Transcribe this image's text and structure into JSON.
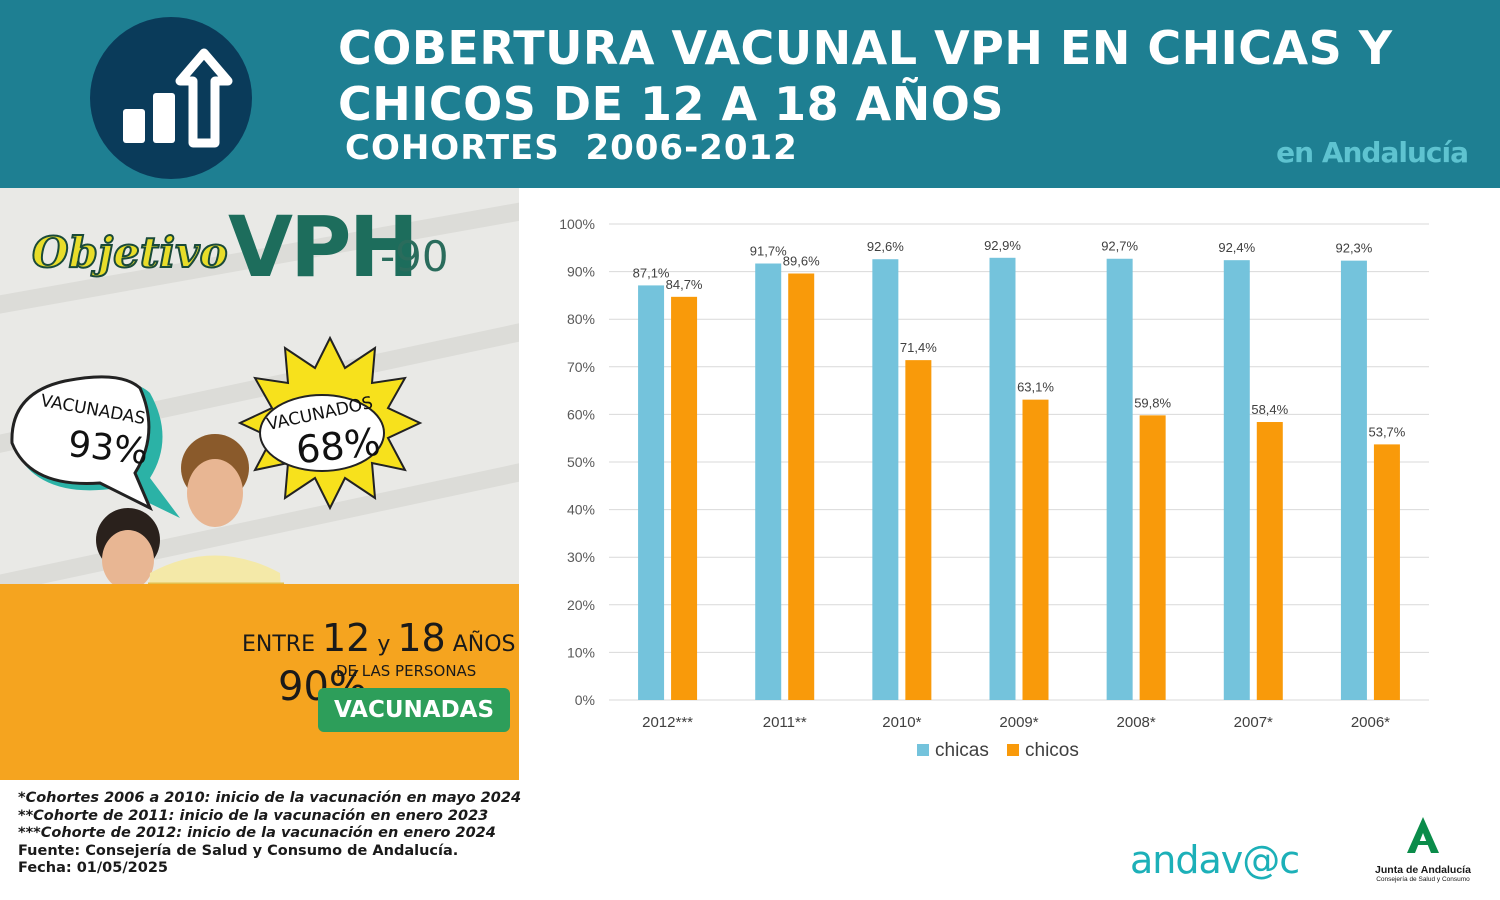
{
  "header": {
    "title": "COBERTURA VACUNAL VPH EN CHICAS Y CHICOS DE 12 A 18 AÑOS",
    "subtitle": "COHORTES  2006-2012",
    "region": "en Andalucía",
    "icon": "bar-chart-growth-icon"
  },
  "poster": {
    "logo_word": "Objetivo",
    "logo_vph": "VPH",
    "logo_suffix": "-90",
    "bubble_girls_label": "VACUNADAS",
    "bubble_girls_value": "93%",
    "bubble_boys_label": "VACUNADOS",
    "bubble_boys_value": "68%",
    "age_line": {
      "prefix": "ENTRE ",
      "a": "12",
      "mid": " y ",
      "b": "18",
      "suffix": " AÑOS"
    },
    "target_pct": "90%",
    "people_text": "DE LAS PERSONAS",
    "cta": "VACUNADAS"
  },
  "chart_data": {
    "type": "bar",
    "categories": [
      "2012***",
      "2011**",
      "2010*",
      "2009*",
      "2008*",
      "2007*",
      "2006*"
    ],
    "series": [
      {
        "name": "chicas",
        "color": "#74c3dc",
        "values": [
          87.1,
          91.7,
          92.6,
          92.9,
          92.7,
          92.4,
          92.3
        ],
        "labels": [
          "87,1%",
          "91,7%",
          "92,6%",
          "92,9%",
          "92,7%",
          "92,4%",
          "92,3%"
        ]
      },
      {
        "name": "chicos",
        "color": "#f99a0a",
        "values": [
          84.7,
          89.6,
          71.4,
          63.1,
          59.8,
          58.4,
          53.7
        ],
        "labels": [
          "84,7%",
          "89,6%",
          "71,4%",
          "63,1%",
          "59,8%",
          "58,4%",
          "53,7%"
        ]
      }
    ],
    "ylim": [
      0,
      100
    ],
    "yticks": [
      "0%",
      "10%",
      "20%",
      "30%",
      "40%",
      "50%",
      "60%",
      "70%",
      "80%",
      "90%",
      "100%"
    ],
    "grid": true,
    "legend_position": "bottom"
  },
  "notes": [
    "*Cohortes 2006 a 2010: inicio de la vacunación en mayo 2024",
    "**Cohorte de 2011: inicio de la vacunación en enero 2023",
    "***Cohorte de 2012: inicio de la vacunación en enero 2024"
  ],
  "source": "Fuente: Consejería de Salud y Consumo de Andalucía.",
  "date": "Fecha: 01/05/2025",
  "logos": {
    "andavac": "andav@c",
    "junta_title": "Junta de Andalucía",
    "junta_sub": "Consejería de Salud y Consumo"
  }
}
